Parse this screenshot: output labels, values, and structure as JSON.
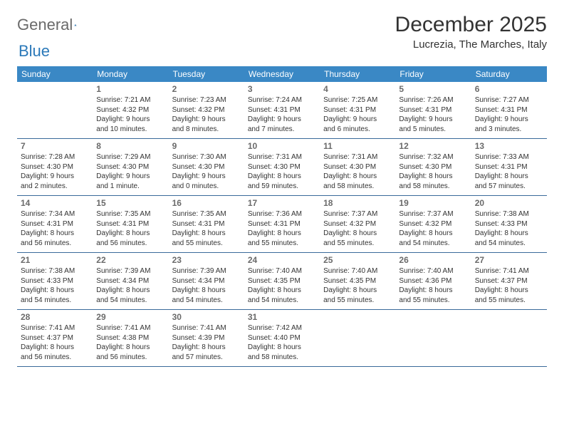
{
  "brand": {
    "part1": "General",
    "part2": "Blue"
  },
  "title": "December 2025",
  "location": "Lucrezia, The Marches, Italy",
  "colors": {
    "header_bg": "#3a88c5",
    "divider": "#3a6a9a",
    "brand_gray": "#6a6a6a",
    "brand_blue": "#2b79b9",
    "text": "#333333",
    "daynum": "#6a6a6a",
    "background": "#ffffff"
  },
  "typography": {
    "title_fontsize": 30,
    "location_fontsize": 15,
    "header_fontsize": 12,
    "daynum_fontsize": 12,
    "body_fontsize": 10
  },
  "day_labels": [
    "Sunday",
    "Monday",
    "Tuesday",
    "Wednesday",
    "Thursday",
    "Friday",
    "Saturday"
  ],
  "weeks": [
    [
      {
        "n": "",
        "sr": "",
        "ss": "",
        "dl1": "",
        "dl2": ""
      },
      {
        "n": "1",
        "sr": "Sunrise: 7:21 AM",
        "ss": "Sunset: 4:32 PM",
        "dl1": "Daylight: 9 hours",
        "dl2": "and 10 minutes."
      },
      {
        "n": "2",
        "sr": "Sunrise: 7:23 AM",
        "ss": "Sunset: 4:32 PM",
        "dl1": "Daylight: 9 hours",
        "dl2": "and 8 minutes."
      },
      {
        "n": "3",
        "sr": "Sunrise: 7:24 AM",
        "ss": "Sunset: 4:31 PM",
        "dl1": "Daylight: 9 hours",
        "dl2": "and 7 minutes."
      },
      {
        "n": "4",
        "sr": "Sunrise: 7:25 AM",
        "ss": "Sunset: 4:31 PM",
        "dl1": "Daylight: 9 hours",
        "dl2": "and 6 minutes."
      },
      {
        "n": "5",
        "sr": "Sunrise: 7:26 AM",
        "ss": "Sunset: 4:31 PM",
        "dl1": "Daylight: 9 hours",
        "dl2": "and 5 minutes."
      },
      {
        "n": "6",
        "sr": "Sunrise: 7:27 AM",
        "ss": "Sunset: 4:31 PM",
        "dl1": "Daylight: 9 hours",
        "dl2": "and 3 minutes."
      }
    ],
    [
      {
        "n": "7",
        "sr": "Sunrise: 7:28 AM",
        "ss": "Sunset: 4:30 PM",
        "dl1": "Daylight: 9 hours",
        "dl2": "and 2 minutes."
      },
      {
        "n": "8",
        "sr": "Sunrise: 7:29 AM",
        "ss": "Sunset: 4:30 PM",
        "dl1": "Daylight: 9 hours",
        "dl2": "and 1 minute."
      },
      {
        "n": "9",
        "sr": "Sunrise: 7:30 AM",
        "ss": "Sunset: 4:30 PM",
        "dl1": "Daylight: 9 hours",
        "dl2": "and 0 minutes."
      },
      {
        "n": "10",
        "sr": "Sunrise: 7:31 AM",
        "ss": "Sunset: 4:30 PM",
        "dl1": "Daylight: 8 hours",
        "dl2": "and 59 minutes."
      },
      {
        "n": "11",
        "sr": "Sunrise: 7:31 AM",
        "ss": "Sunset: 4:30 PM",
        "dl1": "Daylight: 8 hours",
        "dl2": "and 58 minutes."
      },
      {
        "n": "12",
        "sr": "Sunrise: 7:32 AM",
        "ss": "Sunset: 4:30 PM",
        "dl1": "Daylight: 8 hours",
        "dl2": "and 58 minutes."
      },
      {
        "n": "13",
        "sr": "Sunrise: 7:33 AM",
        "ss": "Sunset: 4:31 PM",
        "dl1": "Daylight: 8 hours",
        "dl2": "and 57 minutes."
      }
    ],
    [
      {
        "n": "14",
        "sr": "Sunrise: 7:34 AM",
        "ss": "Sunset: 4:31 PM",
        "dl1": "Daylight: 8 hours",
        "dl2": "and 56 minutes."
      },
      {
        "n": "15",
        "sr": "Sunrise: 7:35 AM",
        "ss": "Sunset: 4:31 PM",
        "dl1": "Daylight: 8 hours",
        "dl2": "and 56 minutes."
      },
      {
        "n": "16",
        "sr": "Sunrise: 7:35 AM",
        "ss": "Sunset: 4:31 PM",
        "dl1": "Daylight: 8 hours",
        "dl2": "and 55 minutes."
      },
      {
        "n": "17",
        "sr": "Sunrise: 7:36 AM",
        "ss": "Sunset: 4:31 PM",
        "dl1": "Daylight: 8 hours",
        "dl2": "and 55 minutes."
      },
      {
        "n": "18",
        "sr": "Sunrise: 7:37 AM",
        "ss": "Sunset: 4:32 PM",
        "dl1": "Daylight: 8 hours",
        "dl2": "and 55 minutes."
      },
      {
        "n": "19",
        "sr": "Sunrise: 7:37 AM",
        "ss": "Sunset: 4:32 PM",
        "dl1": "Daylight: 8 hours",
        "dl2": "and 54 minutes."
      },
      {
        "n": "20",
        "sr": "Sunrise: 7:38 AM",
        "ss": "Sunset: 4:33 PM",
        "dl1": "Daylight: 8 hours",
        "dl2": "and 54 minutes."
      }
    ],
    [
      {
        "n": "21",
        "sr": "Sunrise: 7:38 AM",
        "ss": "Sunset: 4:33 PM",
        "dl1": "Daylight: 8 hours",
        "dl2": "and 54 minutes."
      },
      {
        "n": "22",
        "sr": "Sunrise: 7:39 AM",
        "ss": "Sunset: 4:34 PM",
        "dl1": "Daylight: 8 hours",
        "dl2": "and 54 minutes."
      },
      {
        "n": "23",
        "sr": "Sunrise: 7:39 AM",
        "ss": "Sunset: 4:34 PM",
        "dl1": "Daylight: 8 hours",
        "dl2": "and 54 minutes."
      },
      {
        "n": "24",
        "sr": "Sunrise: 7:40 AM",
        "ss": "Sunset: 4:35 PM",
        "dl1": "Daylight: 8 hours",
        "dl2": "and 54 minutes."
      },
      {
        "n": "25",
        "sr": "Sunrise: 7:40 AM",
        "ss": "Sunset: 4:35 PM",
        "dl1": "Daylight: 8 hours",
        "dl2": "and 55 minutes."
      },
      {
        "n": "26",
        "sr": "Sunrise: 7:40 AM",
        "ss": "Sunset: 4:36 PM",
        "dl1": "Daylight: 8 hours",
        "dl2": "and 55 minutes."
      },
      {
        "n": "27",
        "sr": "Sunrise: 7:41 AM",
        "ss": "Sunset: 4:37 PM",
        "dl1": "Daylight: 8 hours",
        "dl2": "and 55 minutes."
      }
    ],
    [
      {
        "n": "28",
        "sr": "Sunrise: 7:41 AM",
        "ss": "Sunset: 4:37 PM",
        "dl1": "Daylight: 8 hours",
        "dl2": "and 56 minutes."
      },
      {
        "n": "29",
        "sr": "Sunrise: 7:41 AM",
        "ss": "Sunset: 4:38 PM",
        "dl1": "Daylight: 8 hours",
        "dl2": "and 56 minutes."
      },
      {
        "n": "30",
        "sr": "Sunrise: 7:41 AM",
        "ss": "Sunset: 4:39 PM",
        "dl1": "Daylight: 8 hours",
        "dl2": "and 57 minutes."
      },
      {
        "n": "31",
        "sr": "Sunrise: 7:42 AM",
        "ss": "Sunset: 4:40 PM",
        "dl1": "Daylight: 8 hours",
        "dl2": "and 58 minutes."
      },
      {
        "n": "",
        "sr": "",
        "ss": "",
        "dl1": "",
        "dl2": ""
      },
      {
        "n": "",
        "sr": "",
        "ss": "",
        "dl1": "",
        "dl2": ""
      },
      {
        "n": "",
        "sr": "",
        "ss": "",
        "dl1": "",
        "dl2": ""
      }
    ]
  ]
}
